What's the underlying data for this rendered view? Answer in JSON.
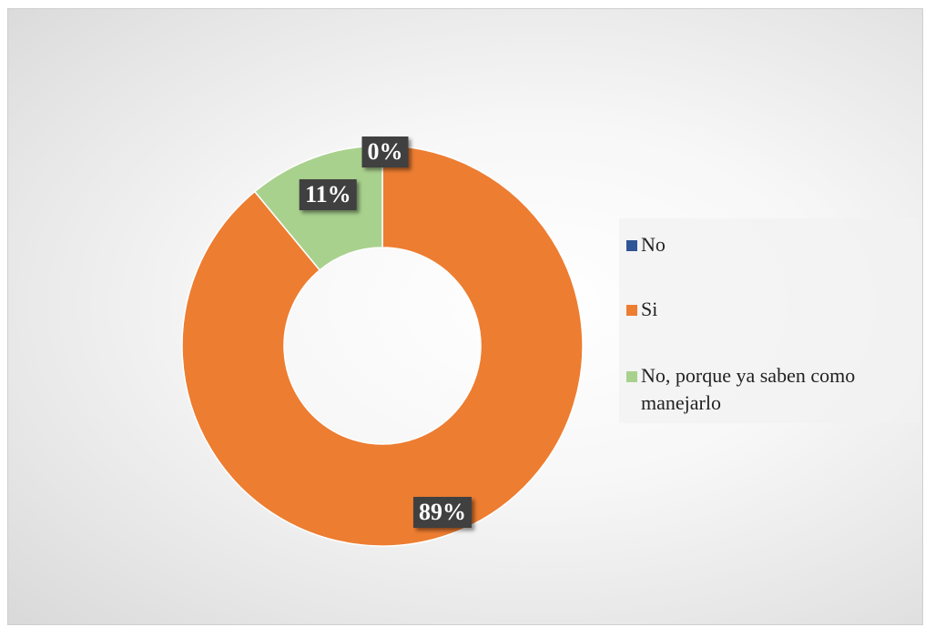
{
  "chart_data": {
    "type": "pie",
    "donut": true,
    "categories": [
      "No",
      "Si",
      "No, porque ya saben como manejarlo"
    ],
    "values": [
      0,
      89,
      11
    ],
    "labels": [
      "0%",
      "89%",
      "11%"
    ],
    "colors": [
      "#2F5597",
      "#ED7D31",
      "#A9D18E"
    ],
    "title": "",
    "legend_position": "right"
  }
}
